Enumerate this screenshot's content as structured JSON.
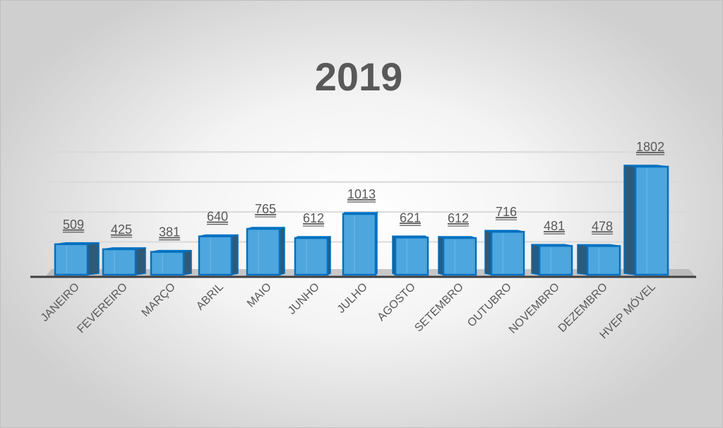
{
  "chart_data": {
    "type": "bar",
    "title": "2019",
    "categories": [
      "JANEIRO",
      "FEVEREIRO",
      "MARÇO",
      "ABRIL",
      "MAIO",
      "JUNHO",
      "JULHO",
      "AGOSTO",
      "SETEMBRO",
      "OUTUBRO",
      "NOVEMBRO",
      "DEZEMBRO",
      "HVEP MÓVEL"
    ],
    "values": [
      509,
      425,
      381,
      640,
      765,
      612,
      1013,
      621,
      612,
      716,
      481,
      478,
      1802
    ],
    "xlabel": "",
    "ylabel": "",
    "ylim": [
      0,
      2000
    ],
    "grid": true,
    "grid_step": 500,
    "style": "3d-column",
    "colors": {
      "front": "#4ea6de",
      "edge": "#0070c0",
      "side": "#2e5a78",
      "title": "#595959"
    }
  }
}
